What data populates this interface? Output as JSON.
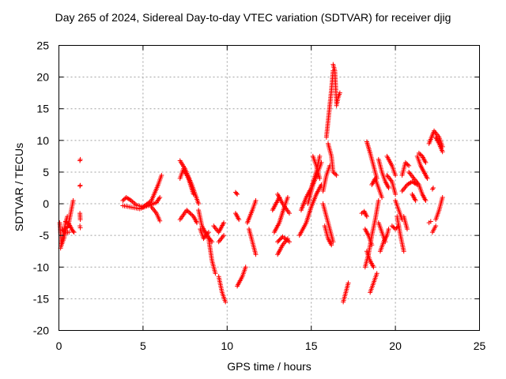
{
  "chart_data": {
    "type": "scatter",
    "title": "Day 265 of 2024, Sidereal Day-to-day VTEC variation (SDTVAR) for receiver djig",
    "xlabel": "GPS time / hours",
    "ylabel": "SDTVAR / TECUs",
    "xlim": [
      0,
      25
    ],
    "ylim": [
      -20,
      25
    ],
    "xticks": [
      0,
      5,
      10,
      15,
      20,
      25
    ],
    "yticks": [
      -20,
      -15,
      -10,
      -5,
      0,
      5,
      10,
      15,
      20,
      25
    ],
    "grid": true,
    "marker": "+",
    "color": "#ff0000",
    "segments": [
      [
        [
          0.05,
          -3
        ],
        [
          0.15,
          -6.5
        ],
        [
          0.3,
          -5.5
        ],
        [
          0.4,
          -4
        ],
        [
          0.55,
          -3.5
        ],
        [
          0.7,
          -1.5
        ],
        [
          0.85,
          0.5
        ]
      ],
      [
        [
          0.1,
          -7
        ],
        [
          0.25,
          -5
        ],
        [
          0.4,
          -3
        ],
        [
          0.5,
          -2
        ]
      ],
      [
        [
          0.4,
          -2.8
        ],
        [
          0.6,
          -3.2
        ],
        [
          0.8,
          -4.2
        ],
        [
          0.9,
          -4.5
        ]
      ],
      [
        [
          0.2,
          -4
        ],
        [
          0.35,
          -4.5
        ],
        [
          0.6,
          -4.5
        ]
      ],
      [
        [
          1.25,
          6.8
        ],
        [
          1.27,
          7
        ]
      ],
      [
        [
          1.25,
          2.8
        ],
        [
          1.27,
          2.9
        ]
      ],
      [
        [
          1.25,
          -1.5
        ],
        [
          1.27,
          -2.5
        ]
      ],
      [
        [
          1.25,
          -3.5
        ],
        [
          1.27,
          -3.8
        ]
      ],
      [
        [
          3.8,
          0.5
        ],
        [
          4.0,
          1
        ],
        [
          4.3,
          0.5
        ],
        [
          4.6,
          -0.2
        ],
        [
          5.0,
          -0.5
        ],
        [
          5.5,
          0.5
        ],
        [
          5.9,
          3
        ],
        [
          6.1,
          4.5
        ]
      ],
      [
        [
          3.8,
          -0.3
        ],
        [
          4.2,
          -0.5
        ],
        [
          4.8,
          -0.8
        ],
        [
          5.3,
          -0.3
        ],
        [
          5.8,
          0.2
        ],
        [
          6.0,
          1
        ]
      ],
      [
        [
          5.5,
          -0.5
        ],
        [
          5.8,
          -1.5
        ],
        [
          6.0,
          -2.7
        ]
      ],
      [
        [
          7.2,
          6.8
        ],
        [
          7.5,
          5.5
        ],
        [
          7.9,
          3
        ],
        [
          8.3,
          0
        ]
      ],
      [
        [
          7.2,
          4
        ],
        [
          7.4,
          5.5
        ],
        [
          7.7,
          4
        ],
        [
          8.0,
          1.5
        ]
      ],
      [
        [
          7.2,
          -2.5
        ],
        [
          7.6,
          -1
        ],
        [
          8.0,
          -2
        ],
        [
          8.2,
          -3
        ]
      ],
      [
        [
          8.3,
          -1
        ],
        [
          8.5,
          -3.5
        ],
        [
          8.8,
          -5
        ],
        [
          9.1,
          -6
        ]
      ],
      [
        [
          8.4,
          -4
        ],
        [
          8.6,
          -5.5
        ],
        [
          8.9,
          -4.5
        ]
      ],
      [
        [
          8.9,
          -5.5
        ],
        [
          9.1,
          -9
        ],
        [
          9.3,
          -11
        ]
      ],
      [
        [
          9.2,
          -3.5
        ],
        [
          9.5,
          -4.5
        ],
        [
          9.8,
          -3
        ]
      ],
      [
        [
          9.5,
          -11.5
        ],
        [
          9.7,
          -14
        ],
        [
          9.9,
          -15.5
        ]
      ],
      [
        [
          9.5,
          -6
        ],
        [
          9.8,
          -5
        ]
      ],
      [
        [
          10.5,
          -1.5
        ],
        [
          10.7,
          -2.5
        ]
      ],
      [
        [
          10.5,
          1.8
        ],
        [
          10.6,
          1.5
        ]
      ],
      [
        [
          10.6,
          -13
        ],
        [
          10.9,
          -11.5
        ],
        [
          11.1,
          -10
        ]
      ],
      [
        [
          11.2,
          -3
        ],
        [
          11.5,
          -1
        ],
        [
          11.7,
          0.5
        ]
      ],
      [
        [
          11.3,
          -4
        ],
        [
          11.5,
          -6
        ],
        [
          11.7,
          -8
        ]
      ],
      [
        [
          12.7,
          -1
        ],
        [
          12.9,
          0
        ],
        [
          13.1,
          1
        ]
      ],
      [
        [
          12.8,
          -4.5
        ],
        [
          13.1,
          -3
        ],
        [
          13.4,
          -0.5
        ],
        [
          13.6,
          1
        ]
      ],
      [
        [
          13.0,
          -6
        ],
        [
          13.3,
          -5.2
        ],
        [
          13.7,
          -6
        ]
      ],
      [
        [
          13.0,
          -8
        ],
        [
          13.3,
          -6.5
        ],
        [
          13.6,
          -5.5
        ]
      ],
      [
        [
          13.0,
          1.5
        ],
        [
          13.3,
          0
        ],
        [
          13.7,
          -1.5
        ]
      ],
      [
        [
          14.3,
          -5
        ],
        [
          14.7,
          -3
        ],
        [
          15.0,
          -0.5
        ],
        [
          15.3,
          1.5
        ],
        [
          15.6,
          3
        ]
      ],
      [
        [
          14.4,
          -1
        ],
        [
          14.7,
          1
        ],
        [
          15.0,
          2.5
        ],
        [
          15.3,
          5
        ],
        [
          15.5,
          7.5
        ]
      ],
      [
        [
          14.8,
          0
        ],
        [
          15.1,
          3
        ],
        [
          15.4,
          5
        ],
        [
          15.6,
          6.5
        ]
      ],
      [
        [
          15.1,
          7.5
        ],
        [
          15.3,
          6
        ],
        [
          15.5,
          4
        ]
      ],
      [
        [
          15.7,
          2
        ],
        [
          15.9,
          4.5
        ],
        [
          16.1,
          6
        ]
      ],
      [
        [
          15.7,
          0
        ],
        [
          15.9,
          -2
        ],
        [
          16.1,
          -4
        ],
        [
          16.3,
          -6
        ]
      ],
      [
        [
          15.8,
          -3.5
        ],
        [
          16.0,
          -5.5
        ],
        [
          16.2,
          -6.5
        ]
      ],
      [
        [
          15.9,
          10.5
        ],
        [
          16.0,
          13
        ],
        [
          16.1,
          15.5
        ],
        [
          16.2,
          18
        ],
        [
          16.3,
          21
        ]
      ],
      [
        [
          16.0,
          9.5
        ],
        [
          16.2,
          7.5
        ],
        [
          16.3,
          5
        ],
        [
          16.5,
          4.5
        ]
      ],
      [
        [
          16.3,
          22
        ],
        [
          16.4,
          21
        ],
        [
          16.5,
          16
        ]
      ],
      [
        [
          16.5,
          15.5
        ],
        [
          16.6,
          16.8
        ],
        [
          16.7,
          17.5
        ]
      ],
      [
        [
          16.9,
          -15.5
        ],
        [
          17.0,
          -14.5
        ],
        [
          17.1,
          -13.5
        ],
        [
          17.2,
          -12.5
        ]
      ],
      [
        [
          18.0,
          -1.5
        ],
        [
          18.15,
          -1.2
        ],
        [
          18.3,
          -2
        ]
      ],
      [
        [
          18.2,
          -4
        ],
        [
          18.4,
          -5
        ],
        [
          18.6,
          -6.5
        ]
      ],
      [
        [
          18.2,
          -10
        ],
        [
          18.4,
          -8
        ],
        [
          18.6,
          -5
        ],
        [
          18.8,
          -2.5
        ],
        [
          19.0,
          0.5
        ]
      ],
      [
        [
          18.3,
          -7.5
        ],
        [
          18.5,
          -9
        ],
        [
          18.7,
          -10
        ]
      ],
      [
        [
          18.3,
          9.8
        ],
        [
          18.5,
          8
        ],
        [
          18.7,
          6
        ],
        [
          18.9,
          4
        ]
      ],
      [
        [
          18.5,
          -14
        ],
        [
          18.7,
          -12.5
        ],
        [
          18.9,
          -11
        ]
      ],
      [
        [
          18.6,
          3
        ],
        [
          18.8,
          4
        ],
        [
          19.0,
          2.5
        ],
        [
          19.2,
          1
        ]
      ],
      [
        [
          19.0,
          7
        ],
        [
          19.2,
          5
        ],
        [
          19.4,
          3.5
        ],
        [
          19.6,
          2.5
        ]
      ],
      [
        [
          19.0,
          -3
        ],
        [
          19.2,
          -4.5
        ],
        [
          19.4,
          -6
        ]
      ],
      [
        [
          19.1,
          -7.5
        ],
        [
          19.3,
          -6
        ],
        [
          19.5,
          -5
        ],
        [
          19.6,
          -4
        ]
      ],
      [
        [
          19.5,
          7.5
        ],
        [
          19.8,
          6
        ],
        [
          20.0,
          4.5
        ]
      ],
      [
        [
          19.5,
          4.5
        ],
        [
          19.8,
          3.5
        ],
        [
          20.0,
          1.5
        ]
      ],
      [
        [
          19.8,
          -3.5
        ],
        [
          20.0,
          -4
        ],
        [
          20.2,
          -3.5
        ]
      ],
      [
        [
          20.0,
          0.5
        ],
        [
          20.2,
          -1
        ],
        [
          20.4,
          -2.5
        ]
      ],
      [
        [
          20.1,
          -2
        ],
        [
          20.3,
          -5
        ],
        [
          20.5,
          -7.5
        ]
      ],
      [
        [
          20.4,
          4.5
        ],
        [
          20.6,
          6.5
        ],
        [
          20.8,
          6
        ]
      ],
      [
        [
          20.5,
          -2
        ],
        [
          20.7,
          -4
        ]
      ],
      [
        [
          20.4,
          2
        ],
        [
          20.7,
          3
        ],
        [
          21.0,
          3.5
        ],
        [
          21.3,
          3
        ]
      ],
      [
        [
          20.8,
          5
        ],
        [
          21.1,
          4
        ],
        [
          21.4,
          3
        ],
        [
          21.6,
          1.5
        ],
        [
          21.8,
          0.5
        ]
      ],
      [
        [
          21.0,
          1.5
        ],
        [
          21.2,
          0.5
        ]
      ],
      [
        [
          21.3,
          7.5
        ],
        [
          21.5,
          6
        ],
        [
          21.7,
          5
        ],
        [
          21.9,
          4
        ]
      ],
      [
        [
          21.4,
          8
        ],
        [
          21.6,
          7.5
        ],
        [
          21.8,
          6.5
        ]
      ],
      [
        [
          22.0,
          -3
        ],
        [
          22.1,
          -2.8
        ]
      ],
      [
        [
          22.2,
          -4.5
        ],
        [
          22.3,
          -4
        ],
        [
          22.4,
          -3.5
        ]
      ],
      [
        [
          22.0,
          9.5
        ],
        [
          22.3,
          11.5
        ],
        [
          22.6,
          10.5
        ],
        [
          22.8,
          9
        ]
      ],
      [
        [
          22.4,
          10.5
        ],
        [
          22.6,
          9.5
        ],
        [
          22.8,
          8.2
        ]
      ],
      [
        [
          22.4,
          -2.5
        ],
        [
          22.6,
          -1
        ],
        [
          22.8,
          1
        ]
      ],
      [
        [
          22.2,
          2.3
        ],
        [
          22.25,
          2.5
        ]
      ]
    ]
  }
}
